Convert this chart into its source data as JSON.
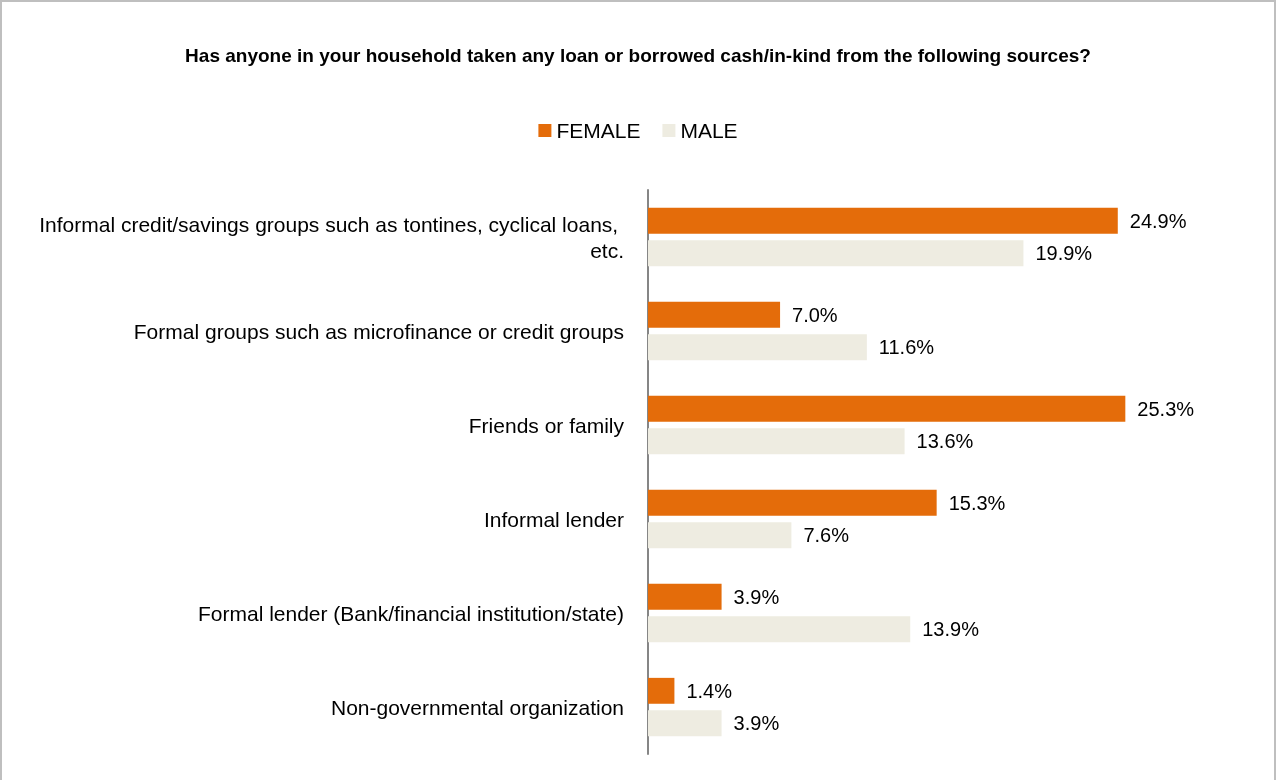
{
  "chart_data": {
    "type": "bar",
    "orientation": "horizontal",
    "title": "Has anyone in your household taken any loan or borrowed cash/in-kind from the following sources?",
    "categories": [
      "Informal credit/savings groups such as tontines, cyclical loans, etc.",
      "Formal groups such as microfinance or credit groups",
      "Friends or family",
      "Informal lender",
      "Formal lender (Bank/financial institution/state)",
      "Non-governmental organization"
    ],
    "series": [
      {
        "name": "FEMALE",
        "color": "#e46c0a",
        "values": [
          24.9,
          7.0,
          25.3,
          15.3,
          3.9,
          1.4
        ],
        "value_labels": [
          "24.9%",
          "7.0%",
          "25.3%",
          "15.3%",
          "3.9%",
          "1.4%"
        ]
      },
      {
        "name": "MALE",
        "color": "#eeece1",
        "values": [
          19.9,
          11.6,
          13.6,
          7.6,
          13.9,
          3.9
        ],
        "value_labels": [
          "19.9%",
          "11.6%",
          "13.6%",
          "7.6%",
          "13.9%",
          "3.9%"
        ]
      }
    ],
    "legend": "top",
    "grid": false
  }
}
